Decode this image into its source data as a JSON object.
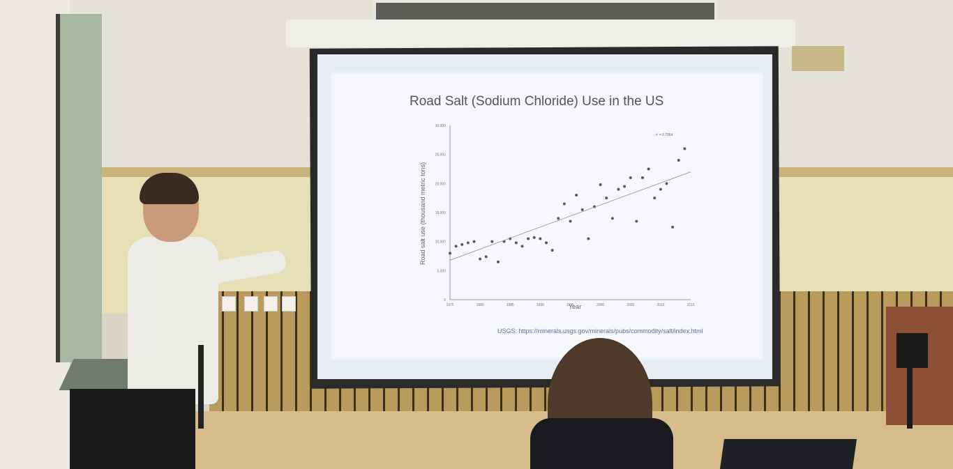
{
  "slide": {
    "title": "Road Salt (Sodium Chloride) Use in the US",
    "y_axis_label": "Road salt use (thousand metric tons)",
    "x_axis_label": "Year",
    "equation_label": "r² = 0.7054",
    "source": "USGS: https://minerals.usgs.gov/minerals/pubs/commodity/salt/index.html"
  },
  "chart_data": {
    "type": "scatter",
    "title": "Road Salt (Sodium Chloride) Use in the US",
    "xlabel": "Year",
    "ylabel": "Road salt use (thousand metric tons)",
    "xlim": [
      1975,
      2015
    ],
    "ylim": [
      0,
      30000
    ],
    "x_ticks": [
      "1975",
      "1980",
      "1985",
      "1990",
      "1995",
      "2000",
      "2005",
      "2010",
      "2015"
    ],
    "y_ticks": [
      "0",
      "5,000",
      "10,000",
      "15,000",
      "20,000",
      "25,000",
      "30,000"
    ],
    "x": [
      1975,
      1976,
      1977,
      1978,
      1979,
      1980,
      1981,
      1982,
      1983,
      1984,
      1985,
      1986,
      1987,
      1988,
      1989,
      1990,
      1991,
      1992,
      1993,
      1994,
      1995,
      1996,
      1997,
      1998,
      1999,
      2000,
      2001,
      2002,
      2003,
      2004,
      2005,
      2006,
      2007,
      2008,
      2009,
      2010,
      2011,
      2012,
      2013,
      2014
    ],
    "values": [
      8000,
      9200,
      9500,
      9800,
      10000,
      7000,
      7400,
      10000,
      6500,
      10000,
      10500,
      9800,
      9200,
      10500,
      10700,
      10500,
      9800,
      8500,
      14000,
      16500,
      13500,
      18000,
      15500,
      10500,
      16000,
      19800,
      17500,
      14000,
      19000,
      19500,
      21000,
      13500,
      21000,
      22500,
      17500,
      19000,
      20000,
      12500,
      24000,
      26000
    ],
    "trendline": {
      "from": [
        1975,
        6800
      ],
      "to": [
        2015,
        22000
      ]
    },
    "marker_color": "#555a66",
    "line_color": "#888888"
  }
}
